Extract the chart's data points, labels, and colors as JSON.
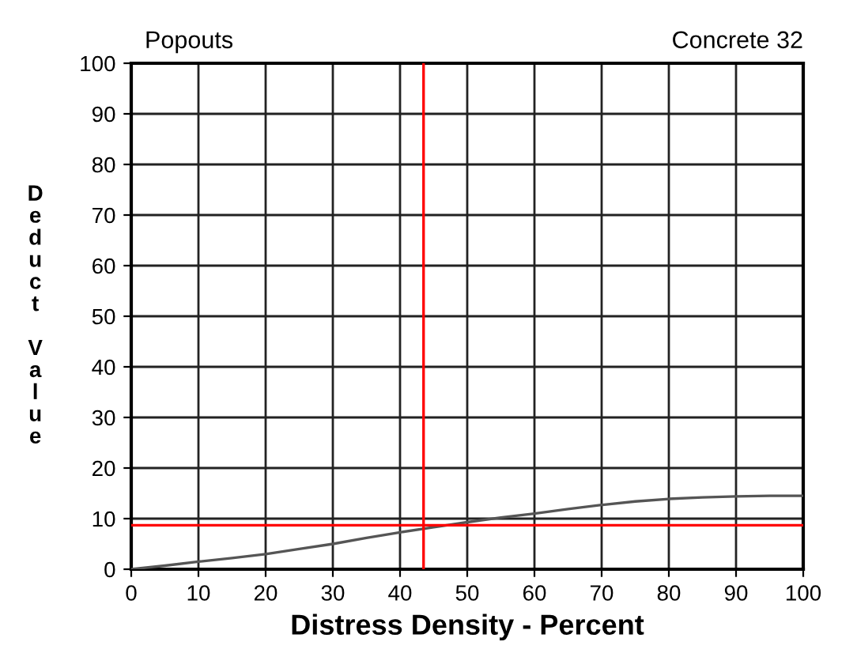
{
  "chart_data": {
    "type": "line",
    "title": "Popouts",
    "subtitle": "Concrete 32",
    "xlabel": "Distress Density - Percent",
    "ylabel": "Deduct Value",
    "x": [
      0,
      5,
      10,
      15,
      20,
      25,
      30,
      35,
      40,
      45,
      50,
      55,
      60,
      65,
      70,
      75,
      80,
      85,
      90,
      95,
      100
    ],
    "series": [
      {
        "color": "#555555",
        "values": [
          0,
          0.7,
          1.5,
          2.2,
          3,
          4,
          5,
          6.2,
          7.3,
          8.3,
          9.3,
          10.2,
          11,
          11.9,
          12.7,
          13.4,
          13.9,
          14.2,
          14.4,
          14.5,
          14.5
        ]
      }
    ],
    "xlim": [
      0,
      100
    ],
    "ylim": [
      0,
      100
    ],
    "xticks": [
      0,
      10,
      20,
      30,
      40,
      50,
      60,
      70,
      80,
      90,
      100
    ],
    "yticks": [
      0,
      10,
      20,
      30,
      40,
      50,
      60,
      70,
      80,
      90,
      100
    ],
    "grid": true,
    "marker": "none",
    "line_style": "solid",
    "ref_lines": [
      {
        "axis": "x",
        "value": 43.5,
        "color": "#ff0000"
      },
      {
        "axis": "y",
        "value": 8.7,
        "color": "#ff0000"
      }
    ]
  }
}
